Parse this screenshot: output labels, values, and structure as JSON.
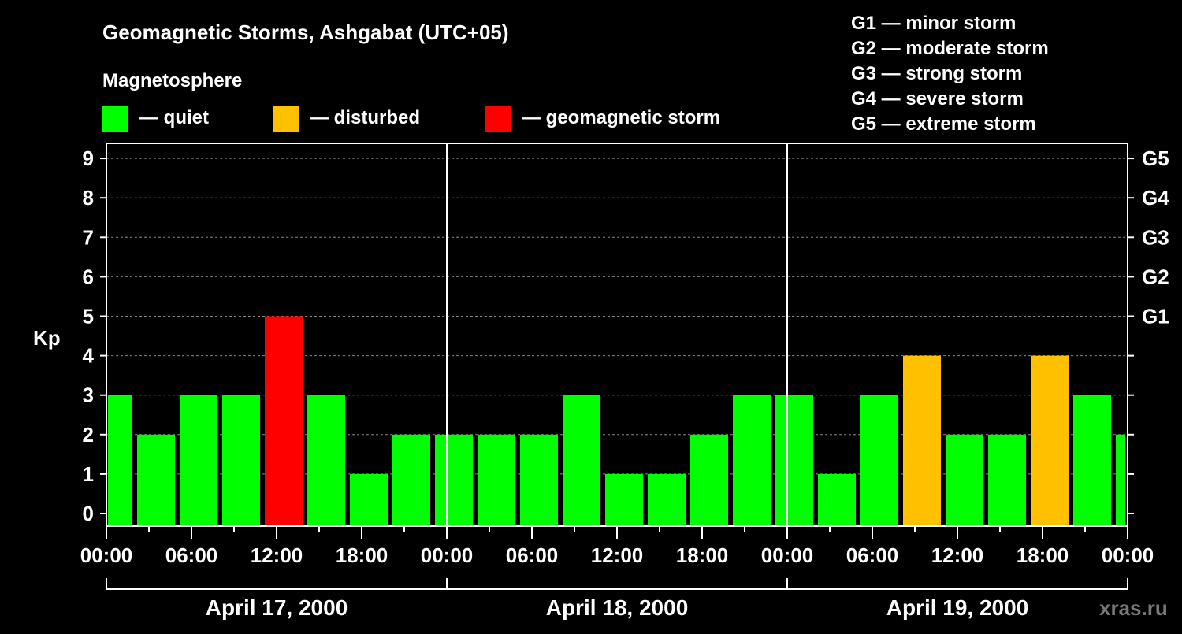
{
  "chart_data": {
    "type": "bar",
    "title": "Geomagnetic Storms, Ashgabat (UTC+05)",
    "legend_title": "Magnetosphere",
    "legend": [
      {
        "label": "— quiet",
        "color": "#00ff00"
      },
      {
        "label": "— disturbed",
        "color": "#ffc000"
      },
      {
        "label": "— geomagnetic storm",
        "color": "#ff0000"
      }
    ],
    "storm_scale": [
      "G1 — minor storm",
      "G2 — moderate storm",
      "G3 — strong storm",
      "G4 — severe storm",
      "G5 — extreme storm"
    ],
    "ylabel": "Kp",
    "ylim": [
      0,
      9
    ],
    "yticks": [
      "0",
      "1",
      "2",
      "3",
      "4",
      "5",
      "6",
      "7",
      "8",
      "9"
    ],
    "right_ticks": [
      {
        "kp": 5,
        "label": "G1"
      },
      {
        "kp": 6,
        "label": "G2"
      },
      {
        "kp": 7,
        "label": "G3"
      },
      {
        "kp": 8,
        "label": "G4"
      },
      {
        "kp": 9,
        "label": "G5"
      }
    ],
    "xlim_hours": [
      0,
      72
    ],
    "xticks": [
      "00:00",
      "06:00",
      "12:00",
      "18:00",
      "00:00",
      "06:00",
      "12:00",
      "18:00",
      "00:00",
      "06:00",
      "12:00",
      "18:00",
      "00:00"
    ],
    "days": [
      "April 17, 2000",
      "April 18, 2000",
      "April 19, 2000"
    ],
    "interval_hours": 3,
    "interval_start_hours": [
      -1,
      2,
      5,
      8,
      11,
      14,
      17,
      20,
      23,
      26,
      29,
      32,
      35,
      38,
      41,
      44,
      47,
      50,
      53,
      56,
      59,
      62,
      65,
      68,
      71
    ],
    "values": [
      3,
      2,
      3,
      3,
      5,
      3,
      1,
      2,
      2,
      2,
      2,
      3,
      1,
      1,
      2,
      3,
      3,
      1,
      3,
      4,
      2,
      2,
      4,
      3,
      2
    ],
    "grid": "dashed horizontal"
  },
  "watermark": "xras.ru"
}
